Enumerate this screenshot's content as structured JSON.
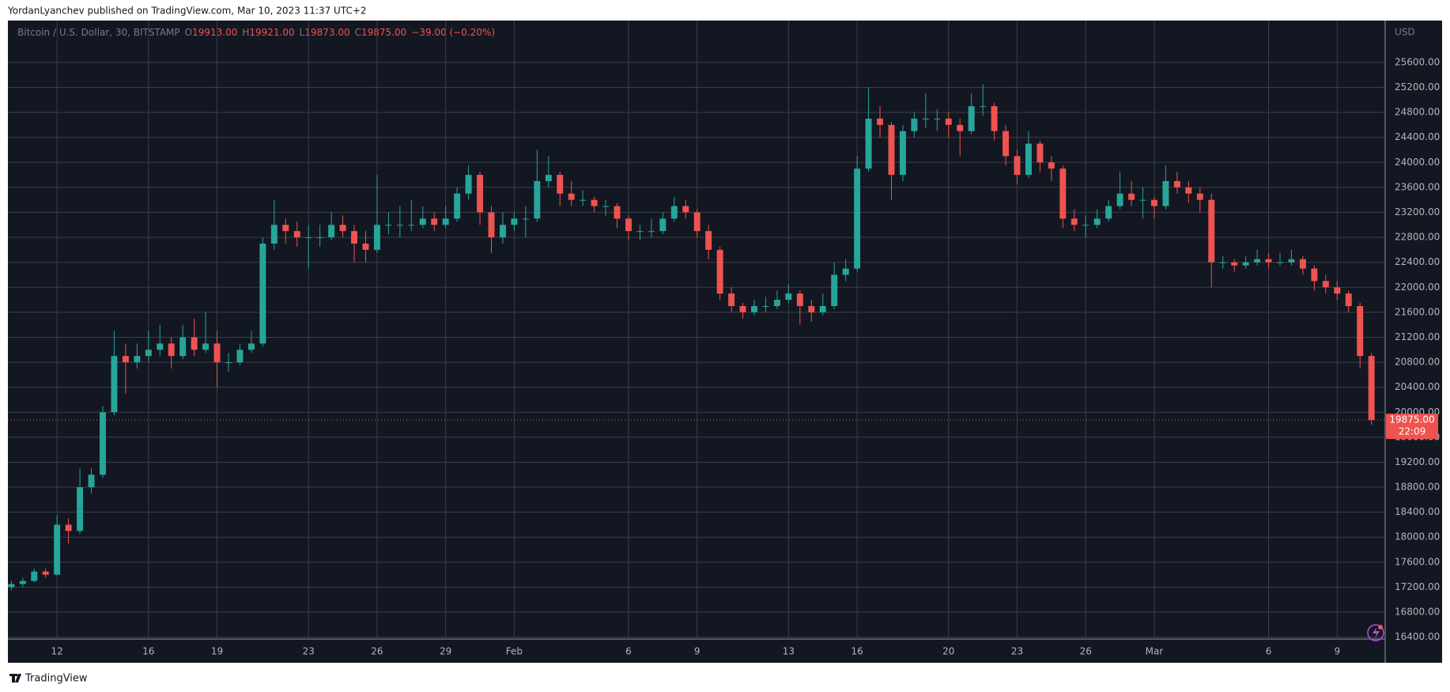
{
  "header": "YordanLyanchev published on TradingView.com, Mar 10, 2023 11:37 UTC+2",
  "footer": "TradingView",
  "chart_data": {
    "type": "candlestick",
    "symbol": "Bitcoin / U.S. Dollar, 30, BITSTAMP",
    "ohlc_legend": [
      {
        "key": "O",
        "value": "19913.00"
      },
      {
        "key": "H",
        "value": "19921.00"
      },
      {
        "key": "L",
        "value": "19873.00"
      },
      {
        "key": "C",
        "value": "19875.00"
      }
    ],
    "change": "−39.00 (−0.20%)",
    "currency": "USD",
    "last_price": {
      "value": 19875,
      "label": "19875.00"
    },
    "countdown": "22:09",
    "up_color": "#26a69a",
    "down_color": "#ef5350",
    "grid": true,
    "xlim": [
      9.85,
      70.1
    ],
    "ylim": [
      16370,
      26270
    ],
    "xticks": [
      12,
      16,
      19,
      23,
      26,
      29,
      {
        "value": 32,
        "label": "Feb"
      },
      {
        "value": 37,
        "label": "6"
      },
      {
        "value": 40,
        "label": "9"
      },
      {
        "value": 44,
        "label": "13"
      },
      {
        "value": 47,
        "label": "16"
      },
      {
        "value": 51,
        "label": "20"
      },
      {
        "value": 54,
        "label": "23"
      },
      {
        "value": 57,
        "label": "26"
      },
      {
        "value": 60,
        "label": "Mar"
      },
      {
        "value": 65,
        "label": "6"
      },
      {
        "value": 68,
        "label": "9"
      }
    ],
    "yticks": [
      {
        "value": 16400,
        "label": "16400.00"
      },
      {
        "value": 16800,
        "label": "16800.00"
      },
      {
        "value": 17200,
        "label": "17200.00"
      },
      {
        "value": 17600,
        "label": "17600.00"
      },
      {
        "value": 18000,
        "label": "18000.00"
      },
      {
        "value": 18400,
        "label": "18400.00"
      },
      {
        "value": 18800,
        "label": "18800.00"
      },
      {
        "value": 19200,
        "label": "19200.00"
      },
      {
        "value": 19600,
        "label": "19600.00"
      },
      {
        "value": 20000,
        "label": "20000.00"
      },
      {
        "value": 20400,
        "label": "20400.00"
      },
      {
        "value": 20800,
        "label": "20800.00"
      },
      {
        "value": 21200,
        "label": "21200.00"
      },
      {
        "value": 21600,
        "label": "21600.00"
      },
      {
        "value": 22000,
        "label": "22000.00"
      },
      {
        "value": 22400,
        "label": "22400.00"
      },
      {
        "value": 22800,
        "label": "22800.00"
      },
      {
        "value": 23200,
        "label": "23200.00"
      },
      {
        "value": 23600,
        "label": "23600.00"
      },
      {
        "value": 24000,
        "label": "24000.00"
      },
      {
        "value": 24400,
        "label": "24400.00"
      },
      {
        "value": 24800,
        "label": "24800.00"
      },
      {
        "value": 25200,
        "label": "25200.00"
      },
      {
        "value": 25600,
        "label": "25600.00"
      }
    ],
    "x": [
      10,
      10.5,
      11,
      11.5,
      12,
      12.5,
      13,
      13.5,
      14,
      14.5,
      15,
      15.5,
      16,
      16.5,
      17,
      17.5,
      18,
      18.5,
      19,
      19.5,
      20,
      20.5,
      21,
      21.5,
      22,
      22.5,
      23,
      23.5,
      24,
      24.5,
      25,
      25.5,
      26,
      26.5,
      27,
      27.5,
      28,
      28.5,
      29,
      29.5,
      30,
      30.5,
      31,
      31.5,
      32,
      32.5,
      33,
      33.5,
      34,
      34.5,
      35,
      35.5,
      36,
      36.5,
      37,
      37.5,
      38,
      38.5,
      39,
      39.5,
      40,
      40.5,
      41,
      41.5,
      42,
      42.5,
      43,
      43.5,
      44,
      44.5,
      45,
      45.5,
      46,
      46.5,
      47,
      47.5,
      48,
      48.5,
      49,
      49.5,
      50,
      50.5,
      51,
      51.5,
      52,
      52.5,
      53,
      53.5,
      54,
      54.5,
      55,
      55.5,
      56,
      56.5,
      57,
      57.5,
      58,
      58.5,
      59,
      59.5,
      60,
      60.5,
      61,
      61.5,
      62,
      62.5,
      63,
      63.5,
      64,
      64.5,
      65,
      65.5,
      66,
      66.5,
      67,
      67.5,
      68,
      68.5,
      69,
      69.5
    ],
    "ohlc": [
      [
        17200,
        17300,
        17150,
        17250
      ],
      [
        17250,
        17350,
        17200,
        17300
      ],
      [
        17300,
        17500,
        17280,
        17450
      ],
      [
        17450,
        17500,
        17350,
        17400
      ],
      [
        17400,
        18350,
        17380,
        18200
      ],
      [
        18200,
        18300,
        17900,
        18100
      ],
      [
        18100,
        19100,
        18050,
        18800
      ],
      [
        18800,
        19100,
        18700,
        19000
      ],
      [
        19000,
        20100,
        18950,
        20000
      ],
      [
        20000,
        21300,
        19950,
        20900
      ],
      [
        20900,
        21100,
        20300,
        20800
      ],
      [
        20800,
        21100,
        20700,
        20900
      ],
      [
        20900,
        21300,
        20800,
        21000
      ],
      [
        21000,
        21400,
        20900,
        21100
      ],
      [
        21100,
        21200,
        20700,
        20900
      ],
      [
        20900,
        21400,
        20850,
        21200
      ],
      [
        21200,
        21500,
        20900,
        21000
      ],
      [
        21000,
        21600,
        20950,
        21100
      ],
      [
        21100,
        21300,
        20400,
        20800
      ],
      [
        20800,
        20950,
        20650,
        20800
      ],
      [
        20800,
        21100,
        20750,
        21000
      ],
      [
        21000,
        21300,
        20950,
        21100
      ],
      [
        21100,
        22800,
        21050,
        22700
      ],
      [
        22700,
        23400,
        22600,
        23000
      ],
      [
        23000,
        23100,
        22700,
        22900
      ],
      [
        22900,
        23050,
        22650,
        22800
      ],
      [
        22800,
        23000,
        22300,
        22800
      ],
      [
        22800,
        23000,
        22650,
        22800
      ],
      [
        22800,
        23200,
        22750,
        23000
      ],
      [
        23000,
        23150,
        22800,
        22900
      ],
      [
        22900,
        23000,
        22400,
        22700
      ],
      [
        22700,
        22900,
        22400,
        22600
      ],
      [
        22600,
        23800,
        22550,
        23000
      ],
      [
        23000,
        23200,
        22850,
        23000
      ],
      [
        23000,
        23300,
        22800,
        23000
      ],
      [
        23000,
        23400,
        22900,
        23000
      ],
      [
        23000,
        23300,
        22950,
        23100
      ],
      [
        23100,
        23200,
        22900,
        23000
      ],
      [
        23000,
        23300,
        22950,
        23100
      ],
      [
        23100,
        23600,
        23050,
        23500
      ],
      [
        23500,
        23950,
        23400,
        23800
      ],
      [
        23800,
        23850,
        23000,
        23200
      ],
      [
        23200,
        23300,
        22550,
        22800
      ],
      [
        22800,
        23200,
        22700,
        23000
      ],
      [
        23000,
        23200,
        22900,
        23100
      ],
      [
        23100,
        23300,
        22800,
        23100
      ],
      [
        23100,
        24200,
        23050,
        23700
      ],
      [
        23700,
        24100,
        23600,
        23800
      ],
      [
        23800,
        23850,
        23300,
        23500
      ],
      [
        23500,
        23700,
        23300,
        23400
      ],
      [
        23400,
        23550,
        23300,
        23400
      ],
      [
        23400,
        23450,
        23200,
        23300
      ],
      [
        23300,
        23400,
        23150,
        23300
      ],
      [
        23300,
        23350,
        22950,
        23100
      ],
      [
        23100,
        23150,
        22750,
        22900
      ],
      [
        22900,
        23000,
        22750,
        22900
      ],
      [
        22900,
        23100,
        22800,
        22900
      ],
      [
        22900,
        23200,
        22850,
        23100
      ],
      [
        23100,
        23450,
        23050,
        23300
      ],
      [
        23300,
        23400,
        23100,
        23200
      ],
      [
        23200,
        23250,
        22800,
        22900
      ],
      [
        22900,
        23000,
        22450,
        22600
      ],
      [
        22600,
        22650,
        21800,
        21900
      ],
      [
        21900,
        22000,
        21600,
        21700
      ],
      [
        21700,
        21750,
        21500,
        21600
      ],
      [
        21600,
        21800,
        21550,
        21700
      ],
      [
        21700,
        21850,
        21600,
        21700
      ],
      [
        21700,
        21950,
        21650,
        21800
      ],
      [
        21800,
        22050,
        21750,
        21900
      ],
      [
        21900,
        21950,
        21400,
        21700
      ],
      [
        21700,
        21800,
        21450,
        21600
      ],
      [
        21600,
        21900,
        21550,
        21700
      ],
      [
        21700,
        22400,
        21650,
        22200
      ],
      [
        22200,
        22450,
        22100,
        22300
      ],
      [
        22300,
        24100,
        22250,
        23900
      ],
      [
        23900,
        25200,
        23850,
        24700
      ],
      [
        24700,
        24900,
        24400,
        24600
      ],
      [
        24600,
        24650,
        23400,
        23800
      ],
      [
        23800,
        24600,
        23700,
        24500
      ],
      [
        24500,
        24800,
        24400,
        24700
      ],
      [
        24700,
        25100,
        24550,
        24700
      ],
      [
        24700,
        24850,
        24500,
        24700
      ],
      [
        24700,
        24800,
        24400,
        24600
      ],
      [
        24600,
        24700,
        24100,
        24500
      ],
      [
        24500,
        25100,
        24450,
        24900
      ],
      [
        24900,
        25250,
        24750,
        24900
      ],
      [
        24900,
        24950,
        24350,
        24500
      ],
      [
        24500,
        24600,
        23950,
        24100
      ],
      [
        24100,
        24200,
        23650,
        23800
      ],
      [
        23800,
        24500,
        23750,
        24300
      ],
      [
        24300,
        24350,
        23850,
        24000
      ],
      [
        24000,
        24100,
        23700,
        23900
      ],
      [
        23900,
        23950,
        22950,
        23100
      ],
      [
        23100,
        23250,
        22900,
        23000
      ],
      [
        23000,
        23150,
        22800,
        23000
      ],
      [
        23000,
        23250,
        22950,
        23100
      ],
      [
        23100,
        23400,
        23050,
        23300
      ],
      [
        23300,
        23850,
        23250,
        23500
      ],
      [
        23500,
        23700,
        23300,
        23400
      ],
      [
        23400,
        23600,
        23100,
        23400
      ],
      [
        23400,
        23450,
        23100,
        23300
      ],
      [
        23300,
        23950,
        23250,
        23700
      ],
      [
        23700,
        23850,
        23500,
        23600
      ],
      [
        23600,
        23700,
        23350,
        23500
      ],
      [
        23500,
        23600,
        23200,
        23400
      ],
      [
        23400,
        23500,
        22000,
        22400
      ],
      [
        22400,
        22500,
        22300,
        22400
      ],
      [
        22400,
        22450,
        22250,
        22350
      ],
      [
        22350,
        22500,
        22300,
        22400
      ],
      [
        22400,
        22600,
        22350,
        22450
      ],
      [
        22450,
        22550,
        22300,
        22400
      ],
      [
        22400,
        22550,
        22350,
        22400
      ],
      [
        22400,
        22600,
        22350,
        22450
      ],
      [
        22450,
        22500,
        22200,
        22300
      ],
      [
        22300,
        22350,
        21950,
        22100
      ],
      [
        22100,
        22200,
        21900,
        22000
      ],
      [
        22000,
        22100,
        21800,
        21900
      ],
      [
        21900,
        21950,
        21600,
        21700
      ],
      [
        21700,
        21750,
        20700,
        20900
      ],
      [
        20900,
        20950,
        19800,
        19875
      ]
    ]
  }
}
